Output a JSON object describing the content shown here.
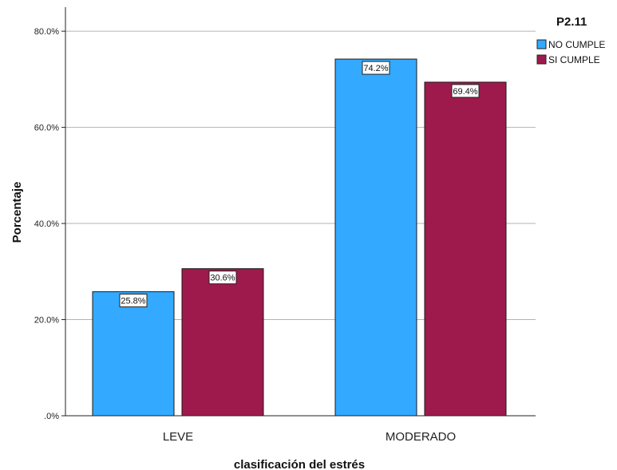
{
  "chart_data": {
    "type": "bar",
    "categories": [
      "LEVE",
      "MODERADO"
    ],
    "series": [
      {
        "name": "NO CUMPLE",
        "values": [
          25.8,
          74.2
        ],
        "labels": [
          "25.8%",
          "74.2%"
        ],
        "color": "#33aaff"
      },
      {
        "name": "SI CUMPLE",
        "values": [
          30.6,
          69.4
        ],
        "labels": [
          "30.6%",
          "69.4%"
        ],
        "color": "#9e1a4c"
      }
    ],
    "xlabel": "clasificación del estrés",
    "ylabel": "Porcentaje",
    "ylim": [
      0,
      85
    ],
    "yticks": [
      0,
      20,
      40,
      60,
      80
    ],
    "ytick_labels": [
      ".0%",
      "20.0%",
      "40.0%",
      "60.0%",
      "80.0%"
    ],
    "grid": true,
    "legend": {
      "title": "P2.11",
      "position": "top-right"
    }
  }
}
